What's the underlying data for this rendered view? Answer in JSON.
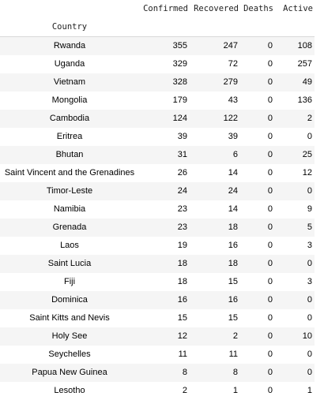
{
  "table": {
    "index_name": "Country",
    "columns": [
      "Confirmed",
      "Recovered",
      "Deaths",
      "Active"
    ],
    "rows": [
      {
        "country": "Rwanda",
        "confirmed": "355",
        "recovered": "247",
        "deaths": "0",
        "active": "108"
      },
      {
        "country": "Uganda",
        "confirmed": "329",
        "recovered": "72",
        "deaths": "0",
        "active": "257"
      },
      {
        "country": "Vietnam",
        "confirmed": "328",
        "recovered": "279",
        "deaths": "0",
        "active": "49"
      },
      {
        "country": "Mongolia",
        "confirmed": "179",
        "recovered": "43",
        "deaths": "0",
        "active": "136"
      },
      {
        "country": "Cambodia",
        "confirmed": "124",
        "recovered": "122",
        "deaths": "0",
        "active": "2"
      },
      {
        "country": "Eritrea",
        "confirmed": "39",
        "recovered": "39",
        "deaths": "0",
        "active": "0"
      },
      {
        "country": "Bhutan",
        "confirmed": "31",
        "recovered": "6",
        "deaths": "0",
        "active": "25"
      },
      {
        "country": "Saint Vincent and the Grenadines",
        "confirmed": "26",
        "recovered": "14",
        "deaths": "0",
        "active": "12"
      },
      {
        "country": "Timor-Leste",
        "confirmed": "24",
        "recovered": "24",
        "deaths": "0",
        "active": "0"
      },
      {
        "country": "Namibia",
        "confirmed": "23",
        "recovered": "14",
        "deaths": "0",
        "active": "9"
      },
      {
        "country": "Grenada",
        "confirmed": "23",
        "recovered": "18",
        "deaths": "0",
        "active": "5"
      },
      {
        "country": "Laos",
        "confirmed": "19",
        "recovered": "16",
        "deaths": "0",
        "active": "3"
      },
      {
        "country": "Saint Lucia",
        "confirmed": "18",
        "recovered": "18",
        "deaths": "0",
        "active": "0"
      },
      {
        "country": "Fiji",
        "confirmed": "18",
        "recovered": "15",
        "deaths": "0",
        "active": "3"
      },
      {
        "country": "Dominica",
        "confirmed": "16",
        "recovered": "16",
        "deaths": "0",
        "active": "0"
      },
      {
        "country": "Saint Kitts and Nevis",
        "confirmed": "15",
        "recovered": "15",
        "deaths": "0",
        "active": "0"
      },
      {
        "country": "Holy See",
        "confirmed": "12",
        "recovered": "2",
        "deaths": "0",
        "active": "10"
      },
      {
        "country": "Seychelles",
        "confirmed": "11",
        "recovered": "11",
        "deaths": "0",
        "active": "0"
      },
      {
        "country": "Papua New Guinea",
        "confirmed": "8",
        "recovered": "8",
        "deaths": "0",
        "active": "0"
      },
      {
        "country": "Lesotho",
        "confirmed": "2",
        "recovered": "1",
        "deaths": "0",
        "active": "1"
      }
    ]
  },
  "colors": {
    "stripe": "#f5f5f5",
    "header_border": "#d9d9d9",
    "text": "#000000"
  }
}
